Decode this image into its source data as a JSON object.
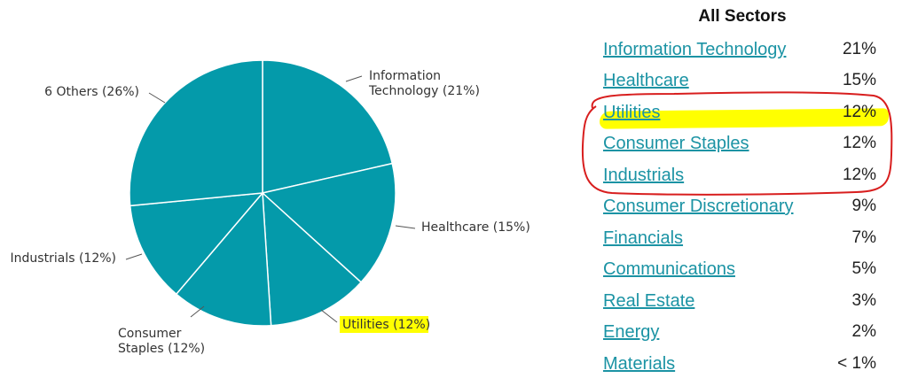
{
  "colors": {
    "pie_fill": "#049aaa",
    "slice_border": "#ffffff",
    "link": "#1b93a4",
    "highlight": "#ffff00",
    "annotation": "#d81e1e"
  },
  "chart_data": {
    "type": "pie",
    "slices": [
      {
        "line1": "Information",
        "line2": "Technology (21%)",
        "value": 21
      },
      {
        "line1": "Healthcare (15%)",
        "line2": "",
        "value": 15
      },
      {
        "line1": "Utilities (12%)",
        "line2": "",
        "value": 12,
        "highlighted": true
      },
      {
        "line1": "Consumer",
        "line2": "Staples (12%)",
        "value": 12
      },
      {
        "line1": "Industrials (12%)",
        "line2": "",
        "value": 12
      },
      {
        "line1": "6 Others (26%)",
        "line2": "",
        "value": 26
      }
    ],
    "start_angle_deg": 0,
    "direction": "clockwise"
  },
  "table": {
    "title": "All Sectors",
    "rows": [
      {
        "name": "Information Technology",
        "pct": "21%"
      },
      {
        "name": "Healthcare",
        "pct": "15%"
      },
      {
        "name": "Utilities",
        "pct": "12%",
        "highlighted": true
      },
      {
        "name": "Consumer Staples",
        "pct": "12%"
      },
      {
        "name": "Industrials",
        "pct": "12%"
      },
      {
        "name": "Consumer Discretionary",
        "pct": "9%"
      },
      {
        "name": "Financials",
        "pct": "7%"
      },
      {
        "name": "Communications",
        "pct": "5%"
      },
      {
        "name": "Real Estate",
        "pct": "3%"
      },
      {
        "name": "Energy",
        "pct": "2%"
      },
      {
        "name": "Materials",
        "pct": "< 1%"
      }
    ]
  }
}
